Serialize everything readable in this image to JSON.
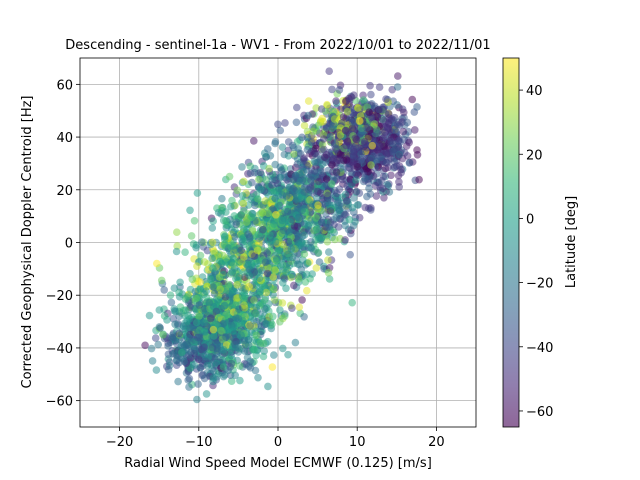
{
  "chart_data": {
    "type": "scatter",
    "title": "Descending - sentinel-1a - WV1 - From 2022/10/01 to 2022/11/01",
    "xlabel": "Radial Wind Speed Model ECMWF (0.125) [m/s]",
    "ylabel": "Corrected Geophysical Doppler Centroid [Hz]",
    "xlim": [
      -25,
      25
    ],
    "ylim": [
      -70,
      70
    ],
    "x_ticks": [
      -20,
      -10,
      0,
      10,
      20
    ],
    "y_ticks": [
      -60,
      -40,
      -20,
      0,
      20,
      40,
      60
    ],
    "x_tick_labels": [
      "−20",
      "−10",
      "0",
      "10",
      "20"
    ],
    "y_tick_labels": [
      "−60",
      "−40",
      "−20",
      "0",
      "20",
      "40",
      "60"
    ],
    "grid": true,
    "marker_alpha": 0.5,
    "colormap": "viridis",
    "colormap_stops": [
      "#440154",
      "#482878",
      "#3e4989",
      "#31688e",
      "#26828e",
      "#1f9e89",
      "#35b779",
      "#6ece58",
      "#b5de2b",
      "#fde725"
    ],
    "colorbar": {
      "label": "Latitude [deg]",
      "range": [
        -65,
        50
      ],
      "ticks": [
        -60,
        -40,
        -20,
        0,
        20,
        40
      ],
      "tick_labels": [
        "−60",
        "−40",
        "−20",
        "0",
        "20",
        "40"
      ]
    },
    "series": [
      {
        "description": "approximate density clusters (x in m/s, y in Hz, latitude in deg)",
        "clusters": [
          {
            "x_mean": 11,
            "y_mean": 38,
            "x_sd": 3.0,
            "y_sd": 9,
            "lat_mean": -45,
            "lat_sd": 12,
            "count": 700
          },
          {
            "x_mean": 9,
            "y_mean": 44,
            "x_sd": 2.5,
            "y_sd": 6,
            "lat_mean": 35,
            "lat_sd": 12,
            "count": 160
          },
          {
            "x_mean": 4,
            "y_mean": 20,
            "x_sd": 3.5,
            "y_sd": 10,
            "lat_mean": -30,
            "lat_sd": 15,
            "count": 450
          },
          {
            "x_mean": 1,
            "y_mean": 8,
            "x_sd": 3.5,
            "y_sd": 10,
            "lat_mean": 5,
            "lat_sd": 20,
            "count": 500
          },
          {
            "x_mean": -3,
            "y_mean": -5,
            "x_sd": 3.5,
            "y_sd": 10,
            "lat_mean": -5,
            "lat_sd": 22,
            "count": 450
          },
          {
            "x_mean": -7,
            "y_mean": -30,
            "x_sd": 3.0,
            "y_sd": 9,
            "lat_mean": -5,
            "lat_sd": 15,
            "count": 700
          },
          {
            "x_mean": -10,
            "y_mean": -40,
            "x_sd": 2.5,
            "y_sd": 7,
            "lat_mean": -30,
            "lat_sd": 12,
            "count": 250
          },
          {
            "x_mean": -6,
            "y_mean": -15,
            "x_sd": 3.5,
            "y_sd": 10,
            "lat_mean": 38,
            "lat_sd": 10,
            "count": 120
          }
        ]
      }
    ]
  }
}
